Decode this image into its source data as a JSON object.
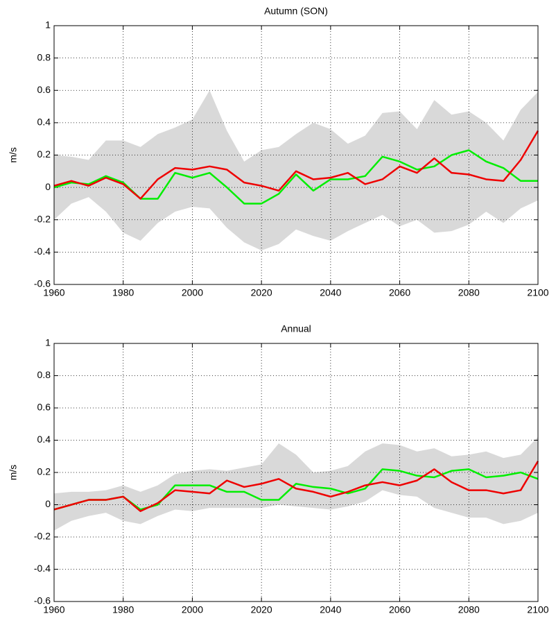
{
  "chart_data": [
    {
      "type": "line",
      "title": "Autumn (SON)",
      "ylabel": "m/s",
      "x": [
        1960,
        1965,
        1970,
        1975,
        1980,
        1985,
        1990,
        1995,
        2000,
        2005,
        2010,
        2015,
        2020,
        2025,
        2030,
        2035,
        2040,
        2045,
        2050,
        2055,
        2060,
        2065,
        2070,
        2075,
        2080,
        2085,
        2090,
        2095,
        2100
      ],
      "xlim": [
        1960,
        2100
      ],
      "xticks": [
        1960,
        1980,
        2000,
        2020,
        2040,
        2060,
        2080,
        2100
      ],
      "ylim": [
        -0.6,
        1
      ],
      "yticks": [
        -0.6,
        -0.4,
        -0.2,
        0,
        0.2,
        0.4,
        0.6,
        0.8,
        1
      ],
      "grid": true,
      "band": {
        "color": "#d9d9d9",
        "upper": [
          0.2,
          0.19,
          0.17,
          0.29,
          0.29,
          0.25,
          0.33,
          0.37,
          0.42,
          0.6,
          0.35,
          0.16,
          0.23,
          0.25,
          0.33,
          0.4,
          0.36,
          0.27,
          0.32,
          0.46,
          0.47,
          0.36,
          0.54,
          0.45,
          0.47,
          0.4,
          0.29,
          0.48,
          0.59
        ],
        "lower": [
          -0.2,
          -0.1,
          -0.06,
          -0.15,
          -0.28,
          -0.33,
          -0.22,
          -0.15,
          -0.12,
          -0.13,
          -0.25,
          -0.34,
          -0.39,
          -0.35,
          -0.26,
          -0.3,
          -0.33,
          -0.27,
          -0.22,
          -0.17,
          -0.24,
          -0.2,
          -0.28,
          -0.27,
          -0.23,
          -0.15,
          -0.22,
          -0.13,
          -0.08
        ]
      },
      "series": [
        {
          "color": "#00ee00",
          "values": [
            0.0,
            0.03,
            0.02,
            0.07,
            0.03,
            -0.07,
            -0.07,
            0.09,
            0.06,
            0.09,
            0.0,
            -0.1,
            -0.1,
            -0.04,
            0.08,
            -0.02,
            0.05,
            0.05,
            0.07,
            0.19,
            0.16,
            0.11,
            0.13,
            0.2,
            0.23,
            0.16,
            0.12,
            0.04,
            0.04
          ]
        },
        {
          "color": "#ee0000",
          "values": [
            0.01,
            0.04,
            0.01,
            0.06,
            0.02,
            -0.07,
            0.05,
            0.12,
            0.11,
            0.13,
            0.11,
            0.03,
            0.01,
            -0.02,
            0.1,
            0.05,
            0.06,
            0.09,
            0.02,
            0.05,
            0.13,
            0.09,
            0.18,
            0.09,
            0.08,
            0.05,
            0.04,
            0.17,
            0.35
          ]
        }
      ]
    },
    {
      "type": "line",
      "title": "Annual",
      "ylabel": "m/s",
      "x": [
        1960,
        1965,
        1970,
        1975,
        1980,
        1985,
        1990,
        1995,
        2000,
        2005,
        2010,
        2015,
        2020,
        2025,
        2030,
        2035,
        2040,
        2045,
        2050,
        2055,
        2060,
        2065,
        2070,
        2075,
        2080,
        2085,
        2090,
        2095,
        2100
      ],
      "xlim": [
        1960,
        2100
      ],
      "xticks": [
        1960,
        1980,
        2000,
        2020,
        2040,
        2060,
        2080,
        2100
      ],
      "ylim": [
        -0.6,
        1
      ],
      "yticks": [
        -0.6,
        -0.4,
        -0.2,
        0,
        0.2,
        0.4,
        0.6,
        0.8,
        1
      ],
      "grid": true,
      "band": {
        "color": "#d9d9d9",
        "upper": [
          0.07,
          0.08,
          0.08,
          0.09,
          0.12,
          0.08,
          0.12,
          0.19,
          0.21,
          0.22,
          0.21,
          0.23,
          0.25,
          0.38,
          0.31,
          0.2,
          0.21,
          0.24,
          0.33,
          0.38,
          0.37,
          0.33,
          0.35,
          0.3,
          0.31,
          0.33,
          0.29,
          0.31,
          0.42
        ],
        "lower": [
          -0.16,
          -0.1,
          -0.07,
          -0.05,
          -0.1,
          -0.12,
          -0.07,
          -0.03,
          -0.04,
          -0.02,
          -0.02,
          -0.02,
          -0.02,
          0.0,
          -0.01,
          -0.02,
          -0.03,
          -0.01,
          0.02,
          0.09,
          0.06,
          0.05,
          -0.02,
          -0.05,
          -0.08,
          -0.08,
          -0.12,
          -0.1,
          -0.05
        ]
      },
      "series": [
        {
          "color": "#00ee00",
          "values": [
            -0.03,
            0.0,
            0.03,
            0.03,
            0.05,
            -0.03,
            0.0,
            0.12,
            0.12,
            0.12,
            0.08,
            0.08,
            0.03,
            0.03,
            0.13,
            0.11,
            0.1,
            0.07,
            0.1,
            0.22,
            0.21,
            0.18,
            0.17,
            0.21,
            0.22,
            0.17,
            0.18,
            0.2,
            0.16
          ]
        },
        {
          "color": "#ee0000",
          "values": [
            -0.03,
            0.0,
            0.03,
            0.03,
            0.05,
            -0.04,
            0.01,
            0.09,
            0.08,
            0.07,
            0.15,
            0.11,
            0.13,
            0.16,
            0.1,
            0.08,
            0.05,
            0.08,
            0.12,
            0.14,
            0.12,
            0.15,
            0.22,
            0.14,
            0.09,
            0.09,
            0.07,
            0.09,
            0.27
          ]
        }
      ]
    }
  ]
}
